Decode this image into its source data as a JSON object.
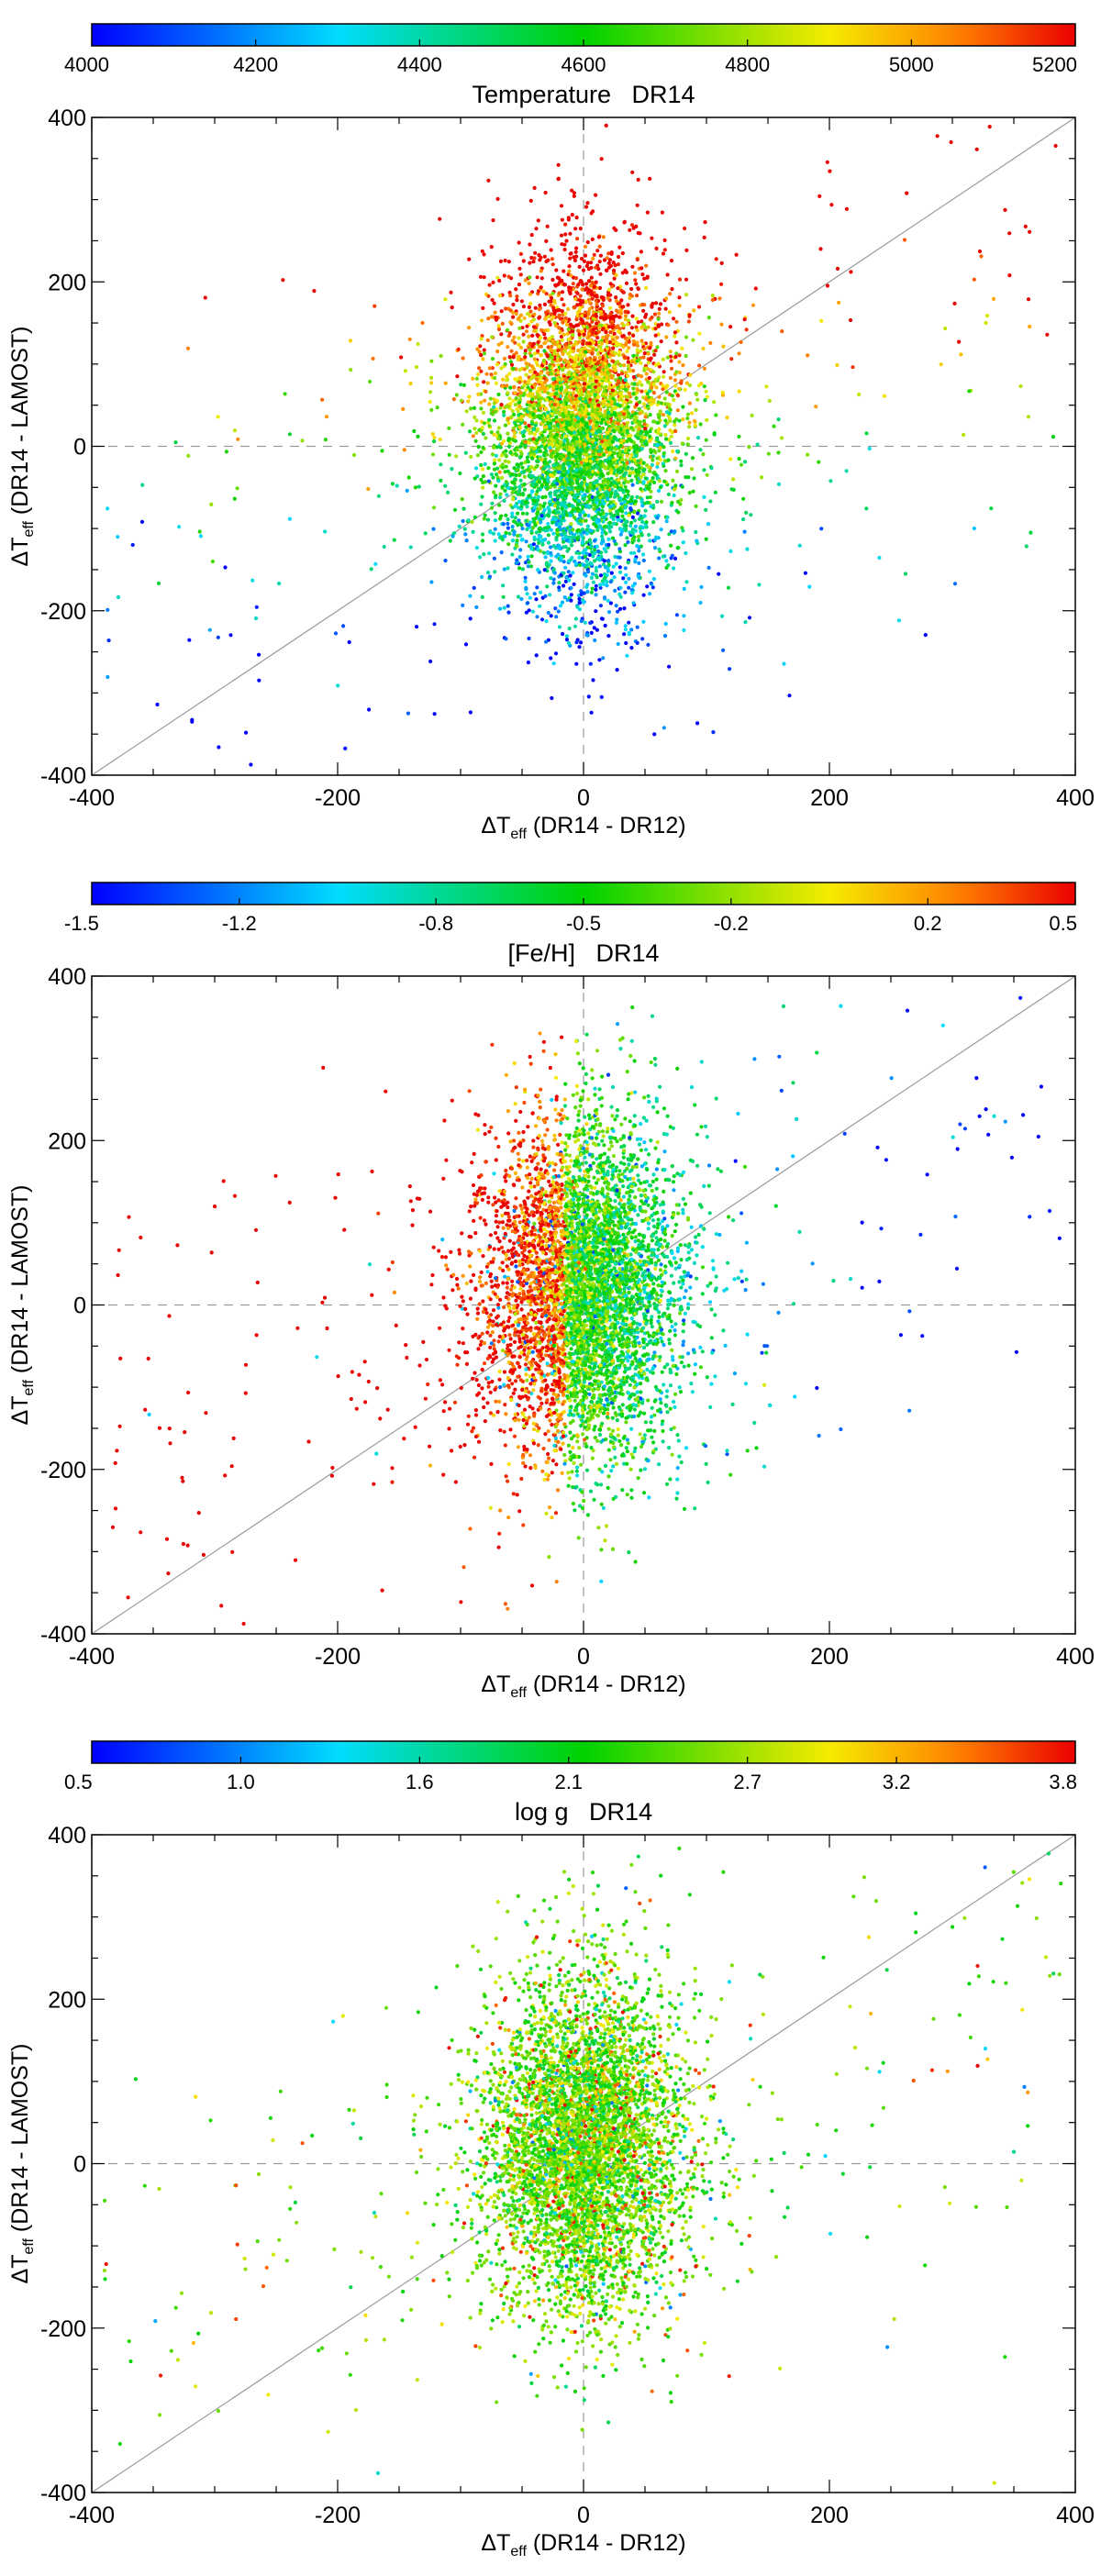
{
  "chart_data": [
    {
      "type": "scatter",
      "title": "",
      "xlabel": {
        "delta": "Δ",
        "main": "T",
        "sub": "eff",
        "tail": " (DR14 - DR12)"
      },
      "ylabel": {
        "delta": "Δ",
        "main": "T",
        "sub": "eff",
        "tail": " (DR14 - LAMOST)"
      },
      "xlim": [
        -400,
        400
      ],
      "ylim": [
        -400,
        400
      ],
      "xticks": [
        "-400",
        "-200",
        "0",
        "200",
        "400"
      ],
      "yticks": [
        "-400",
        "-200",
        "0",
        "200",
        "400"
      ],
      "grid": false,
      "reference_lines": [
        "y = 0 (dashed)",
        "x = 0 (dashed)",
        "y = x (solid)"
      ],
      "colorbar": {
        "title": "Temperature   DR14",
        "range": [
          4000,
          5200
        ],
        "ticks": [
          "4000",
          "4200",
          "4400",
          "4600",
          "4800",
          "5000",
          "5200"
        ],
        "tick_values": [
          4000,
          4200,
          4400,
          4600,
          4800,
          5000,
          5200
        ],
        "colormap": "rainbow (blue → cyan → green → yellow → red)"
      },
      "points": {
        "core_center": [
          0,
          20
        ],
        "core_spread": [
          40,
          100
        ],
        "color_trend": "color value rises with ΔTeff(DR14 - LAMOST): blue/green below, orange/red above"
      }
    },
    {
      "type": "scatter",
      "title": "",
      "xlabel": {
        "delta": "Δ",
        "main": "T",
        "sub": "eff",
        "tail": " (DR14 - DR12)"
      },
      "ylabel": {
        "delta": "Δ",
        "main": "T",
        "sub": "eff",
        "tail": " (DR14 - LAMOST)"
      },
      "xlim": [
        -400,
        400
      ],
      "ylim": [
        -400,
        400
      ],
      "xticks": [
        "-400",
        "-200",
        "0",
        "200",
        "400"
      ],
      "yticks": [
        "-400",
        "-200",
        "0",
        "200",
        "400"
      ],
      "grid": false,
      "reference_lines": [
        "y = 0 (dashed)",
        "x = 0 (dashed)",
        "y = x (solid)"
      ],
      "colorbar": {
        "title": "[Fe/H]   DR14",
        "range": [
          -1.5,
          0.5
        ],
        "ticks": [
          "-1.5",
          "-1.2",
          "-0.8",
          "-0.5",
          "-0.2",
          "0.2",
          "0.5"
        ],
        "tick_values": [
          -1.5,
          -1.2,
          -0.8,
          -0.5,
          -0.2,
          0.2,
          0.5
        ],
        "colormap": "rainbow (blue → cyan → green → yellow → red)"
      },
      "points": {
        "core_center": [
          0,
          20
        ],
        "core_spread": [
          40,
          100
        ],
        "color_trend": "metal-rich (red) stars concentrated at ΔTeff(DR14 - DR12) < 0, metal-poor (blue) scattered at positive offsets"
      }
    },
    {
      "type": "scatter",
      "title": "",
      "xlabel": {
        "delta": "Δ",
        "main": "T",
        "sub": "eff",
        "tail": " (DR14 - DR12)"
      },
      "ylabel": {
        "delta": "Δ",
        "main": "T",
        "sub": "eff",
        "tail": " (DR14 - LAMOST)"
      },
      "xlim": [
        -400,
        400
      ],
      "ylim": [
        -400,
        400
      ],
      "xticks": [
        "-400",
        "-200",
        "0",
        "200",
        "400"
      ],
      "yticks": [
        "-400",
        "-200",
        "0",
        "200",
        "400"
      ],
      "grid": false,
      "reference_lines": [
        "y = 0 (dashed)",
        "x = 0 (dashed)",
        "y = x (solid)"
      ],
      "colorbar": {
        "title": "log g   DR14",
        "range": [
          0.5,
          3.8
        ],
        "ticks": [
          "0.5",
          "1.0",
          "1.6",
          "2.1",
          "2.7",
          "3.2",
          "3.8"
        ],
        "tick_values": [
          0.5,
          1.0,
          1.6,
          2.1,
          2.7,
          3.2,
          3.8
        ],
        "colormap": "rainbow (blue → cyan → green → yellow → red)"
      },
      "points": {
        "core_center": [
          0,
          20
        ],
        "core_spread": [
          40,
          100
        ],
        "color_trend": "mostly green/yellow (log g ≈ 2–3), red high-gravity stars scattered"
      }
    }
  ]
}
